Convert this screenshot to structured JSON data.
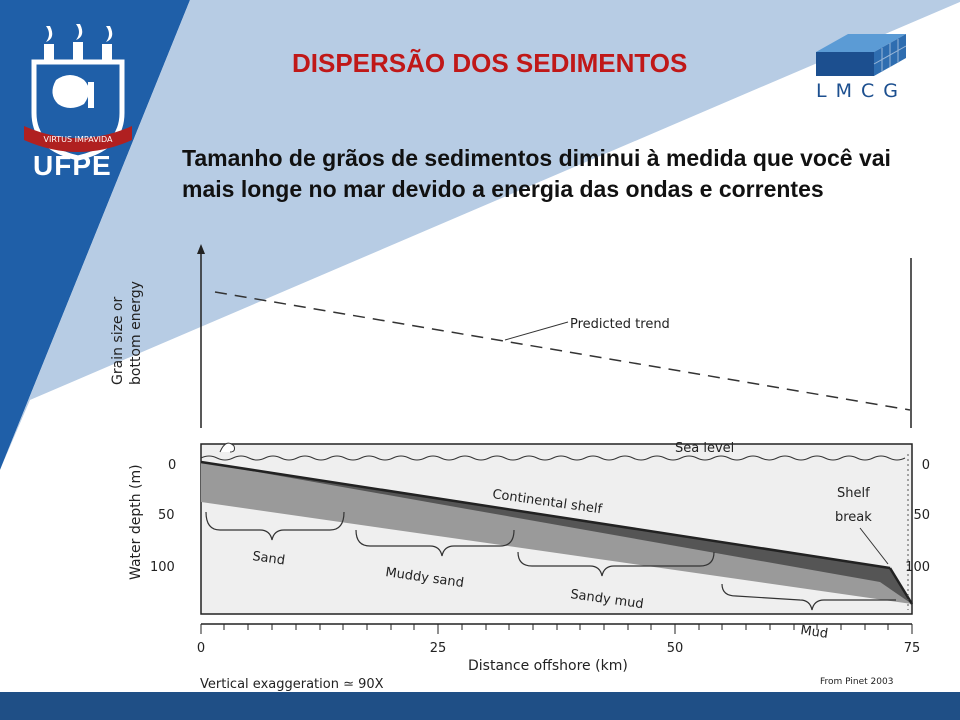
{
  "slide": {
    "title": "DISPERSÃO  DOS SEDIMENTOS",
    "subtitle": "Tamanho de grãos de sedimentos diminui à medida que você vai mais longe no mar devido a energia das ondas e correntes",
    "logo_left": {
      "text": "UFPE",
      "motto": "VIRTUS IMPAVIDA",
      "icon": "ufpe-crest-icon"
    },
    "logo_right": {
      "text": "LMCG",
      "icon": "lmcg-cube-icon"
    },
    "colors": {
      "title": "#c01818",
      "sidebar": "#1f5fa8",
      "footer": "#1f4f86"
    }
  },
  "figure": {
    "top_panel": {
      "ylabel": [
        "Grain size or",
        "bottom energy"
      ],
      "trend_label": "Predicted trend"
    },
    "bottom_panel": {
      "ylabel": "Water depth (m)",
      "y_ticks_left": [
        "0",
        "50",
        "100"
      ],
      "y_ticks_right": [
        "0",
        "50",
        "100"
      ],
      "sea_level_label": "Sea level",
      "shelf_label": "Continental shelf",
      "shelf_break_label": [
        "Shelf",
        "break"
      ],
      "zones": [
        "Sand",
        "Muddy sand",
        "Sandy mud",
        "Mud"
      ],
      "x_ticks": [
        "0",
        "25",
        "50",
        "75"
      ],
      "xlabel": "Distance offshore (km)",
      "exaggeration": "Vertical exaggeration ≃ 90X",
      "source": "From Pinet 2003"
    }
  }
}
